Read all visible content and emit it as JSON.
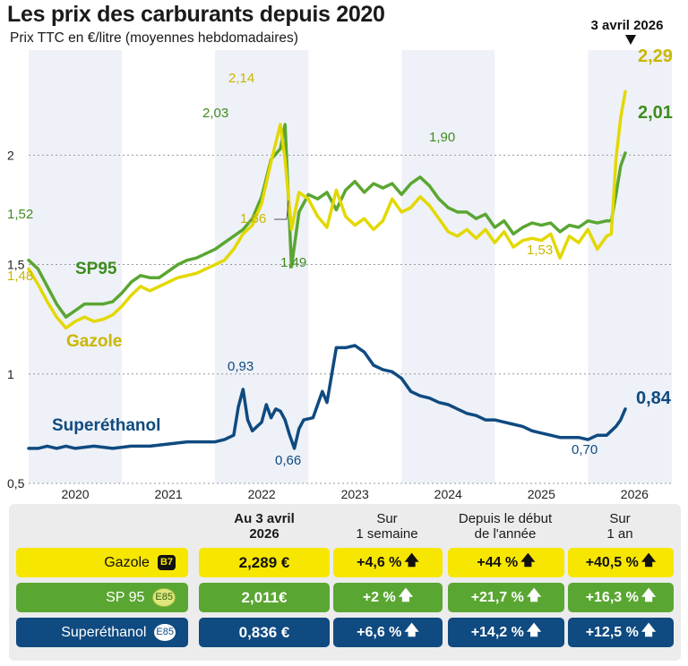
{
  "title": "Les prix des carburants depuis 2020",
  "subtitle": "Prix TTC en €/litre (moyennes hebdomadaires)",
  "chart_data": {
    "type": "line",
    "xlim": [
      2019.5,
      2026.4
    ],
    "ylim": [
      0.5,
      2.48
    ],
    "x_ticks": [
      "2020",
      "2021",
      "2022",
      "2023",
      "2024",
      "2025",
      "2026"
    ],
    "y_ticks": [
      {
        "value": 0.5,
        "label": "0,5"
      },
      {
        "value": 1,
        "label": "1"
      },
      {
        "value": 1.5,
        "label": "1,5"
      },
      {
        "value": 2,
        "label": "2"
      }
    ],
    "series": [
      {
        "name": "SP95",
        "color": "#5aa632",
        "x": [
          2019.5,
          2019.6,
          2019.7,
          2019.8,
          2019.9,
          2020.0,
          2020.1,
          2020.2,
          2020.3,
          2020.4,
          2020.5,
          2020.6,
          2020.7,
          2020.8,
          2020.9,
          2021.0,
          2021.1,
          2021.2,
          2021.3,
          2021.4,
          2021.5,
          2021.6,
          2021.7,
          2021.8,
          2021.9,
          2022.0,
          2022.1,
          2022.2,
          2022.25,
          2022.32,
          2022.4,
          2022.5,
          2022.6,
          2022.7,
          2022.8,
          2022.9,
          2023.0,
          2023.1,
          2023.2,
          2023.3,
          2023.4,
          2023.5,
          2023.6,
          2023.7,
          2023.8,
          2023.9,
          2024.0,
          2024.1,
          2024.2,
          2024.3,
          2024.4,
          2024.5,
          2024.6,
          2024.7,
          2024.8,
          2024.9,
          2025.0,
          2025.1,
          2025.2,
          2025.3,
          2025.4,
          2025.5,
          2025.6,
          2025.7,
          2025.75,
          2025.8,
          2025.85,
          2025.9
        ],
        "values": [
          1.52,
          1.48,
          1.4,
          1.32,
          1.26,
          1.29,
          1.32,
          1.32,
          1.32,
          1.33,
          1.37,
          1.42,
          1.45,
          1.44,
          1.44,
          1.47,
          1.5,
          1.52,
          1.53,
          1.55,
          1.57,
          1.6,
          1.63,
          1.66,
          1.71,
          1.81,
          1.98,
          2.03,
          2.14,
          1.49,
          1.74,
          1.82,
          1.8,
          1.83,
          1.75,
          1.84,
          1.88,
          1.83,
          1.87,
          1.85,
          1.87,
          1.82,
          1.87,
          1.9,
          1.86,
          1.8,
          1.76,
          1.74,
          1.74,
          1.71,
          1.73,
          1.67,
          1.7,
          1.64,
          1.67,
          1.69,
          1.68,
          1.69,
          1.65,
          1.68,
          1.67,
          1.7,
          1.69,
          1.7,
          1.7,
          1.82,
          1.95,
          2.01
        ]
      },
      {
        "name": "Gazole",
        "color": "#e3d800",
        "x": [
          2019.5,
          2019.6,
          2019.7,
          2019.8,
          2019.9,
          2020.0,
          2020.1,
          2020.2,
          2020.3,
          2020.4,
          2020.5,
          2020.6,
          2020.7,
          2020.8,
          2020.9,
          2021.0,
          2021.1,
          2021.2,
          2021.3,
          2021.4,
          2021.5,
          2021.6,
          2021.7,
          2021.8,
          2021.9,
          2022.0,
          2022.1,
          2022.2,
          2022.25,
          2022.32,
          2022.4,
          2022.5,
          2022.6,
          2022.7,
          2022.8,
          2022.9,
          2023.0,
          2023.1,
          2023.2,
          2023.3,
          2023.4,
          2023.5,
          2023.6,
          2023.7,
          2023.8,
          2023.9,
          2024.0,
          2024.1,
          2024.2,
          2024.3,
          2024.4,
          2024.5,
          2024.6,
          2024.7,
          2024.8,
          2024.9,
          2025.0,
          2025.1,
          2025.2,
          2025.3,
          2025.4,
          2025.5,
          2025.6,
          2025.7,
          2025.75,
          2025.8,
          2025.85,
          2025.9
        ],
        "values": [
          1.48,
          1.41,
          1.33,
          1.26,
          1.21,
          1.24,
          1.26,
          1.24,
          1.25,
          1.27,
          1.31,
          1.36,
          1.4,
          1.38,
          1.4,
          1.42,
          1.44,
          1.45,
          1.46,
          1.48,
          1.5,
          1.52,
          1.57,
          1.64,
          1.68,
          1.78,
          1.97,
          2.14,
          1.98,
          1.66,
          1.83,
          1.8,
          1.72,
          1.67,
          1.84,
          1.72,
          1.68,
          1.71,
          1.66,
          1.7,
          1.8,
          1.74,
          1.76,
          1.81,
          1.77,
          1.71,
          1.65,
          1.63,
          1.66,
          1.62,
          1.66,
          1.6,
          1.65,
          1.58,
          1.61,
          1.62,
          1.61,
          1.64,
          1.53,
          1.63,
          1.6,
          1.66,
          1.57,
          1.63,
          1.64,
          1.98,
          2.17,
          2.29
        ]
      },
      {
        "name": "Superéthanol",
        "color": "#0f4a80",
        "x": [
          2019.5,
          2019.6,
          2019.7,
          2019.8,
          2019.9,
          2020.0,
          2020.2,
          2020.4,
          2020.6,
          2020.8,
          2021.0,
          2021.2,
          2021.4,
          2021.5,
          2021.6,
          2021.7,
          2021.75,
          2021.8,
          2021.85,
          2021.9,
          2022.0,
          2022.05,
          2022.1,
          2022.15,
          2022.2,
          2022.25,
          2022.3,
          2022.35,
          2022.4,
          2022.45,
          2022.55,
          2022.6,
          2022.65,
          2022.7,
          2022.8,
          2022.9,
          2023.0,
          2023.1,
          2023.2,
          2023.3,
          2023.4,
          2023.5,
          2023.6,
          2023.7,
          2023.8,
          2023.9,
          2024.0,
          2024.1,
          2024.2,
          2024.3,
          2024.4,
          2024.5,
          2024.6,
          2024.7,
          2024.8,
          2024.9,
          2025.0,
          2025.1,
          2025.2,
          2025.3,
          2025.4,
          2025.5,
          2025.6,
          2025.7,
          2025.75,
          2025.8,
          2025.85,
          2025.9
        ],
        "values": [
          0.66,
          0.66,
          0.67,
          0.66,
          0.67,
          0.66,
          0.67,
          0.66,
          0.67,
          0.67,
          0.68,
          0.69,
          0.69,
          0.69,
          0.7,
          0.72,
          0.85,
          0.93,
          0.79,
          0.74,
          0.78,
          0.86,
          0.8,
          0.84,
          0.83,
          0.79,
          0.72,
          0.66,
          0.75,
          0.79,
          0.8,
          0.86,
          0.92,
          0.87,
          1.12,
          1.12,
          1.13,
          1.1,
          1.04,
          1.02,
          1.01,
          0.98,
          0.92,
          0.9,
          0.89,
          0.87,
          0.86,
          0.84,
          0.82,
          0.81,
          0.79,
          0.79,
          0.78,
          0.77,
          0.76,
          0.74,
          0.73,
          0.72,
          0.71,
          0.71,
          0.71,
          0.7,
          0.72,
          0.72,
          0.74,
          0.76,
          0.79,
          0.84
        ]
      }
    ],
    "annotations": [
      {
        "text": "1,52",
        "series": "SP95"
      },
      {
        "text": "1,48",
        "series": "Gazole"
      },
      {
        "text": "2,03",
        "series": "SP95"
      },
      {
        "text": "2,14",
        "series": "Gazole"
      },
      {
        "text": "1,66",
        "series": "Gazole"
      },
      {
        "text": "1,49",
        "series": "SP95"
      },
      {
        "text": "1,90",
        "series": "SP95"
      },
      {
        "text": "1,53",
        "series": "Gazole"
      },
      {
        "text": "2,29",
        "series": "Gazole"
      },
      {
        "text": "2,01",
        "series": "SP95"
      },
      {
        "text": "0,93",
        "series": "Superéthanol"
      },
      {
        "text": "0,66",
        "series": "Superéthanol"
      },
      {
        "text": "0,70",
        "series": "Superéthanol"
      },
      {
        "text": "0,84",
        "series": "Superéthanol"
      }
    ],
    "date_marker": "3 avril 2026",
    "series_labels": [
      "SP95",
      "Gazole",
      "Superéthanol"
    ]
  },
  "table": {
    "headers": {
      "date": [
        "Au 3 avril",
        "2026"
      ],
      "week": [
        "Sur",
        "1 semaine"
      ],
      "year_start": [
        "Depuis le début",
        "de l'année"
      ],
      "one_year": [
        "Sur",
        "1 an"
      ]
    },
    "rows": [
      {
        "name": "Gazole",
        "badge": "B7",
        "price": "2,289 €",
        "week": "+4,6 %",
        "ytd": "+44 %",
        "year": "+40,5 %"
      },
      {
        "name": "SP 95",
        "badge": "E85",
        "price": "2,011€",
        "week": "+2 %",
        "ytd": "+21,7 %",
        "year": "+16,3 %"
      },
      {
        "name": "Superéthanol",
        "badge": "E85",
        "price": "0,836 €",
        "week": "+6,6 %",
        "ytd": "+14,2 %",
        "year": "+12,5 %"
      }
    ]
  }
}
